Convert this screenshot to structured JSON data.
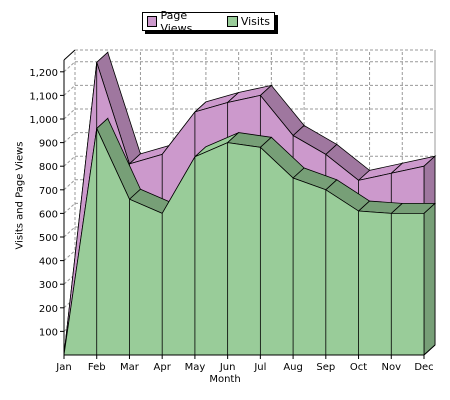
{
  "chart_data": {
    "type": "area",
    "categories": [
      "Jan",
      "Feb",
      "Mar",
      "Apr",
      "May",
      "Jun",
      "Jul",
      "Aug",
      "Sep",
      "Oct",
      "Nov",
      "Dec"
    ],
    "series": [
      {
        "name": "Page Views",
        "values": [
          0,
          1240,
          810,
          850,
          1030,
          1070,
          1100,
          930,
          850,
          740,
          770,
          800
        ],
        "color": "#cc99cc"
      },
      {
        "name": "Visits",
        "values": [
          0,
          960,
          660,
          600,
          840,
          900,
          880,
          750,
          700,
          610,
          600,
          600
        ],
        "color": "#99cc99"
      }
    ],
    "xlabel": "Month",
    "ylabel": "Visits and Page Views",
    "ylim": [
      0,
      1250
    ],
    "yticks": [
      100,
      200,
      300,
      400,
      500,
      600,
      700,
      800,
      900,
      1000,
      1100,
      1200
    ],
    "ytick_labels": [
      "100",
      "200",
      "300",
      "400",
      "500",
      "600",
      "700",
      "800",
      "900",
      "1,000",
      "1,100",
      "1,200"
    ],
    "grid": true,
    "legend_position": "top-center",
    "style": "3d-stacked-area"
  }
}
